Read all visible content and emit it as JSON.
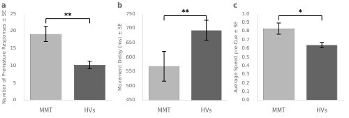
{
  "chart_data": [
    {
      "type": "bar",
      "title": "a",
      "ylabel": "Number of Premature Responses ± SE",
      "categories": [
        "MMT",
        "HVs"
      ],
      "values": [
        19.2,
        10.2
      ],
      "errors": [
        2.2,
        1.1
      ],
      "colors": [
        "#b8b8b8",
        "#646464"
      ],
      "ylim": [
        0,
        25
      ],
      "yticks": [
        0,
        5,
        10,
        15,
        20,
        25
      ],
      "annotation": "**",
      "grid": false
    },
    {
      "type": "bar",
      "title": "b",
      "ylabel": "Movement Delay (ms) ± SE",
      "categories": [
        "MMT",
        "HVs"
      ],
      "values": [
        568,
        693
      ],
      "errors": [
        52,
        35
      ],
      "colors": [
        "#b8b8b8",
        "#646464"
      ],
      "ylim": [
        450,
        750
      ],
      "yticks": [
        450,
        500,
        550,
        600,
        650,
        700,
        750
      ],
      "annotation": "**",
      "grid": false
    },
    {
      "type": "bar",
      "title": "c",
      "ylabel": "Average Speed pre-Cue ± SE",
      "categories": [
        "MMT",
        "HVs"
      ],
      "values": [
        0.83,
        0.64
      ],
      "errors": [
        0.065,
        0.03
      ],
      "colors": [
        "#b8b8b8",
        "#646464"
      ],
      "ylim": [
        0,
        1.0
      ],
      "yticks": [
        {
          "value": 0,
          "label": "0.0"
        },
        0.1,
        0.2,
        0.3,
        0.4,
        0.5,
        0.6,
        0.7,
        0.8,
        0.9,
        {
          "value": 1,
          "label": "1.0"
        }
      ],
      "annotation": "*",
      "grid": false
    }
  ]
}
